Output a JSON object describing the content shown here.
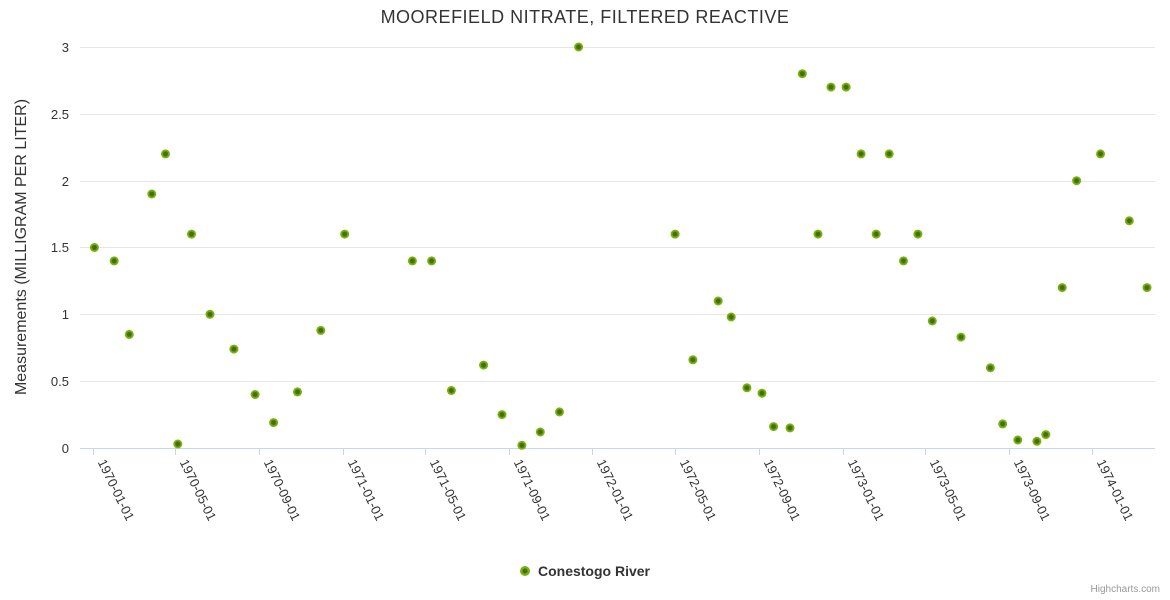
{
  "chart_data": {
    "type": "scatter",
    "title": "MOOREFIELD NITRATE, FILTERED REACTIVE",
    "xlabel": "",
    "ylabel": "Measurements (MILLIGRAM PER LITER)",
    "ylim": [
      0,
      3
    ],
    "grid": true,
    "legend_position": "bottom-center",
    "credits": "Highcharts.com",
    "x_ticks": [
      "1970-01-01",
      "1970-05-01",
      "1970-09-01",
      "1971-01-01",
      "1971-05-01",
      "1971-09-01",
      "1972-01-01",
      "1972-05-01",
      "1972-09-01",
      "1973-01-01",
      "1973-05-01",
      "1973-09-01",
      "1974-01-01"
    ],
    "y_ticks": [
      0,
      0.5,
      1,
      1.5,
      2,
      2.5,
      3
    ],
    "series": [
      {
        "name": "Conestogo River",
        "points": [
          {
            "date": "1970-01-03",
            "value": 1.5
          },
          {
            "date": "1970-02-01",
            "value": 1.4
          },
          {
            "date": "1970-02-23",
            "value": 0.85
          },
          {
            "date": "1970-03-28",
            "value": 1.9
          },
          {
            "date": "1970-04-17",
            "value": 2.2
          },
          {
            "date": "1970-05-05",
            "value": 0.03
          },
          {
            "date": "1970-05-25",
            "value": 1.6
          },
          {
            "date": "1970-06-21",
            "value": 1.0
          },
          {
            "date": "1970-07-26",
            "value": 0.74
          },
          {
            "date": "1970-08-26",
            "value": 0.4
          },
          {
            "date": "1970-09-22",
            "value": 0.19
          },
          {
            "date": "1970-10-27",
            "value": 0.42
          },
          {
            "date": "1970-11-30",
            "value": 0.88
          },
          {
            "date": "1971-01-04",
            "value": 1.6
          },
          {
            "date": "1971-04-13",
            "value": 1.4
          },
          {
            "date": "1971-05-11",
            "value": 1.4
          },
          {
            "date": "1971-06-09",
            "value": 0.43
          },
          {
            "date": "1971-07-26",
            "value": 0.62
          },
          {
            "date": "1971-08-22",
            "value": 0.25
          },
          {
            "date": "1971-09-20",
            "value": 0.02
          },
          {
            "date": "1971-10-17",
            "value": 0.12
          },
          {
            "date": "1971-11-14",
            "value": 0.27
          },
          {
            "date": "1971-12-12",
            "value": 3.0
          },
          {
            "date": "1972-05-01",
            "value": 1.6
          },
          {
            "date": "1972-05-27",
            "value": 0.66
          },
          {
            "date": "1972-07-03",
            "value": 1.1
          },
          {
            "date": "1972-07-22",
            "value": 0.98
          },
          {
            "date": "1972-08-14",
            "value": 0.45
          },
          {
            "date": "1972-09-05",
            "value": 0.41
          },
          {
            "date": "1972-09-22",
            "value": 0.16
          },
          {
            "date": "1972-10-16",
            "value": 0.15
          },
          {
            "date": "1972-11-03",
            "value": 2.8
          },
          {
            "date": "1972-11-26",
            "value": 1.6
          },
          {
            "date": "1972-12-15",
            "value": 2.7
          },
          {
            "date": "1973-01-06",
            "value": 2.7
          },
          {
            "date": "1973-01-28",
            "value": 2.2
          },
          {
            "date": "1973-02-19",
            "value": 1.6
          },
          {
            "date": "1973-03-10",
            "value": 2.2
          },
          {
            "date": "1973-03-31",
            "value": 1.4
          },
          {
            "date": "1973-04-21",
            "value": 1.6
          },
          {
            "date": "1973-05-12",
            "value": 0.95
          },
          {
            "date": "1973-06-23",
            "value": 0.83
          },
          {
            "date": "1973-08-05",
            "value": 0.6
          },
          {
            "date": "1973-08-23",
            "value": 0.18
          },
          {
            "date": "1973-09-14",
            "value": 0.06
          },
          {
            "date": "1973-10-12",
            "value": 0.05
          },
          {
            "date": "1973-10-25",
            "value": 0.1
          },
          {
            "date": "1973-11-18",
            "value": 1.2
          },
          {
            "date": "1973-12-09",
            "value": 2.0
          },
          {
            "date": "1974-01-13",
            "value": 2.2
          },
          {
            "date": "1974-02-24",
            "value": 1.7
          },
          {
            "date": "1974-03-22",
            "value": 1.2
          }
        ]
      }
    ]
  },
  "colors": {
    "marker_outer": "#78b30d",
    "marker_inner": "#456d06",
    "gridline": "#e6e6e6",
    "axis_line": "#ccd6eb",
    "title_text": "#333333",
    "credits_text": "#999999"
  }
}
